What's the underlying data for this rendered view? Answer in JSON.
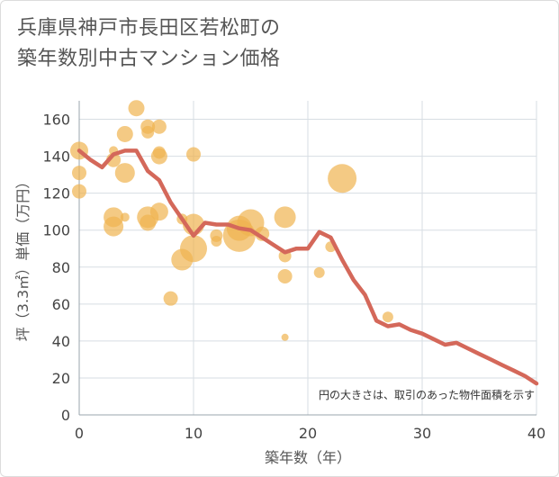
{
  "title_line1": "兵庫県神戸市長田区若松町の",
  "title_line2": "築年数別中古マンション価格",
  "chart_data": {
    "type": "scatter",
    "xlabel": "築年数（年）",
    "ylabel": "坪（3.3㎡）単価（万円）",
    "xlim": [
      0,
      40
    ],
    "ylim": [
      0,
      170
    ],
    "xticks": [
      0,
      10,
      20,
      30,
      40
    ],
    "yticks": [
      0,
      20,
      40,
      60,
      80,
      100,
      120,
      140,
      160
    ],
    "grid": true,
    "note": "円の大きさは、取引のあった物件面積を示す",
    "colors": {
      "bubble": "#f0b450",
      "line": "#d4685a",
      "grid": "#d7dde3"
    },
    "bubbles": [
      {
        "x": 0,
        "y": 143,
        "s": 10
      },
      {
        "x": 0,
        "y": 131,
        "s": 8
      },
      {
        "x": 0,
        "y": 121,
        "s": 8
      },
      {
        "x": 3,
        "y": 143,
        "s": 5
      },
      {
        "x": 3,
        "y": 138,
        "s": 8
      },
      {
        "x": 4,
        "y": 152,
        "s": 9
      },
      {
        "x": 4,
        "y": 131,
        "s": 11
      },
      {
        "x": 3,
        "y": 107,
        "s": 11
      },
      {
        "x": 3,
        "y": 102,
        "s": 11
      },
      {
        "x": 4,
        "y": 107,
        "s": 5
      },
      {
        "x": 5,
        "y": 166,
        "s": 9
      },
      {
        "x": 6,
        "y": 156,
        "s": 8
      },
      {
        "x": 6,
        "y": 153,
        "s": 7
      },
      {
        "x": 7,
        "y": 156,
        "s": 8
      },
      {
        "x": 7,
        "y": 142,
        "s": 7
      },
      {
        "x": 7,
        "y": 140,
        "s": 9
      },
      {
        "x": 6,
        "y": 107,
        "s": 12
      },
      {
        "x": 6,
        "y": 104,
        "s": 9
      },
      {
        "x": 7,
        "y": 110,
        "s": 10
      },
      {
        "x": 8,
        "y": 63,
        "s": 8
      },
      {
        "x": 9,
        "y": 106,
        "s": 6
      },
      {
        "x": 9,
        "y": 84,
        "s": 12
      },
      {
        "x": 10,
        "y": 141,
        "s": 8
      },
      {
        "x": 10,
        "y": 103,
        "s": 12
      },
      {
        "x": 10,
        "y": 90,
        "s": 15
      },
      {
        "x": 12,
        "y": 97,
        "s": 7
      },
      {
        "x": 12,
        "y": 94,
        "s": 6
      },
      {
        "x": 14,
        "y": 101,
        "s": 14
      },
      {
        "x": 14,
        "y": 97,
        "s": 18
      },
      {
        "x": 15,
        "y": 104,
        "s": 15
      },
      {
        "x": 16,
        "y": 98,
        "s": 8
      },
      {
        "x": 18,
        "y": 107,
        "s": 12
      },
      {
        "x": 18,
        "y": 86,
        "s": 7
      },
      {
        "x": 18,
        "y": 75,
        "s": 8
      },
      {
        "x": 18,
        "y": 42,
        "s": 4
      },
      {
        "x": 21,
        "y": 77,
        "s": 6
      },
      {
        "x": 22,
        "y": 91,
        "s": 6
      },
      {
        "x": 23,
        "y": 128,
        "s": 16
      },
      {
        "x": 27,
        "y": 53,
        "s": 6
      }
    ],
    "trend": {
      "x": [
        0,
        1,
        2,
        3,
        4,
        5,
        6,
        7,
        8,
        9,
        10,
        11,
        12,
        13,
        14,
        15,
        16,
        17,
        18,
        19,
        20,
        21,
        22,
        23,
        24,
        25,
        26,
        27,
        28,
        29,
        30,
        31,
        32,
        33,
        34,
        35,
        36,
        37,
        38,
        39,
        40
      ],
      "y": [
        143,
        138,
        134,
        141,
        143,
        143,
        132,
        127,
        115,
        106,
        97,
        104,
        103,
        103,
        101,
        100,
        96,
        92,
        88,
        90,
        90,
        99,
        96,
        84,
        73,
        65,
        51,
        48,
        49,
        46,
        44,
        41,
        38,
        39,
        36,
        33,
        30,
        27,
        24,
        21,
        17
      ]
    }
  }
}
